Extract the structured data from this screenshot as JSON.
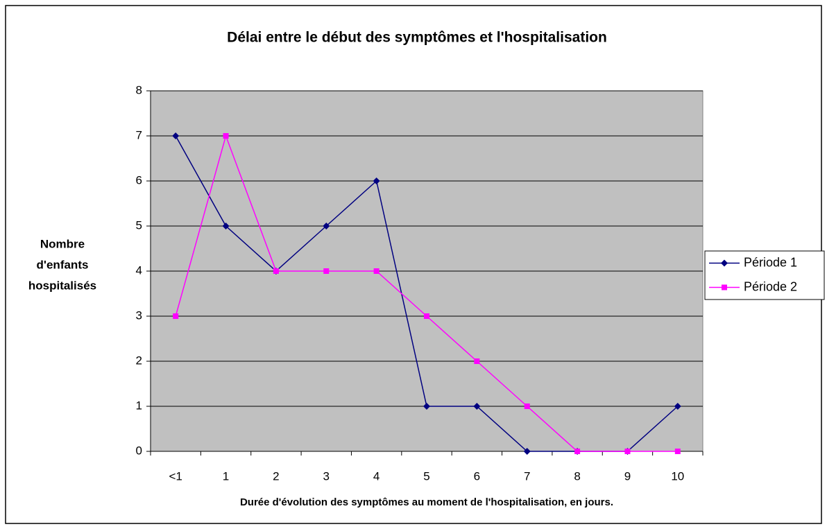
{
  "chart_data": {
    "type": "line",
    "title": "Délai entre le début des symptômes et l'hospitalisation",
    "x_label": "Durée d'évolution des symptômes au moment de l'hospitalisation, en jours.",
    "y_label": [
      "Nombre",
      "d'enfants",
      "hospitalisés"
    ],
    "categories": [
      "<1",
      "1",
      "2",
      "3",
      "4",
      "5",
      "6",
      "7",
      "8",
      "9",
      "10"
    ],
    "series": [
      {
        "name": "Période 1",
        "color": "#000080",
        "marker": "diamond",
        "values": [
          7,
          5,
          4,
          5,
          6,
          1,
          1,
          0,
          0,
          0,
          1
        ]
      },
      {
        "name": "Période 2",
        "color": "#ff00ff",
        "marker": "square",
        "values": [
          3,
          7,
          4,
          4,
          4,
          3,
          2,
          1,
          0,
          0,
          0
        ]
      }
    ],
    "ylim": [
      0,
      8
    ],
    "yticks": [
      0,
      1,
      2,
      3,
      4,
      5,
      6,
      7,
      8
    ],
    "grid": true,
    "legend": "right",
    "plot_background": "#c0c0c0"
  }
}
